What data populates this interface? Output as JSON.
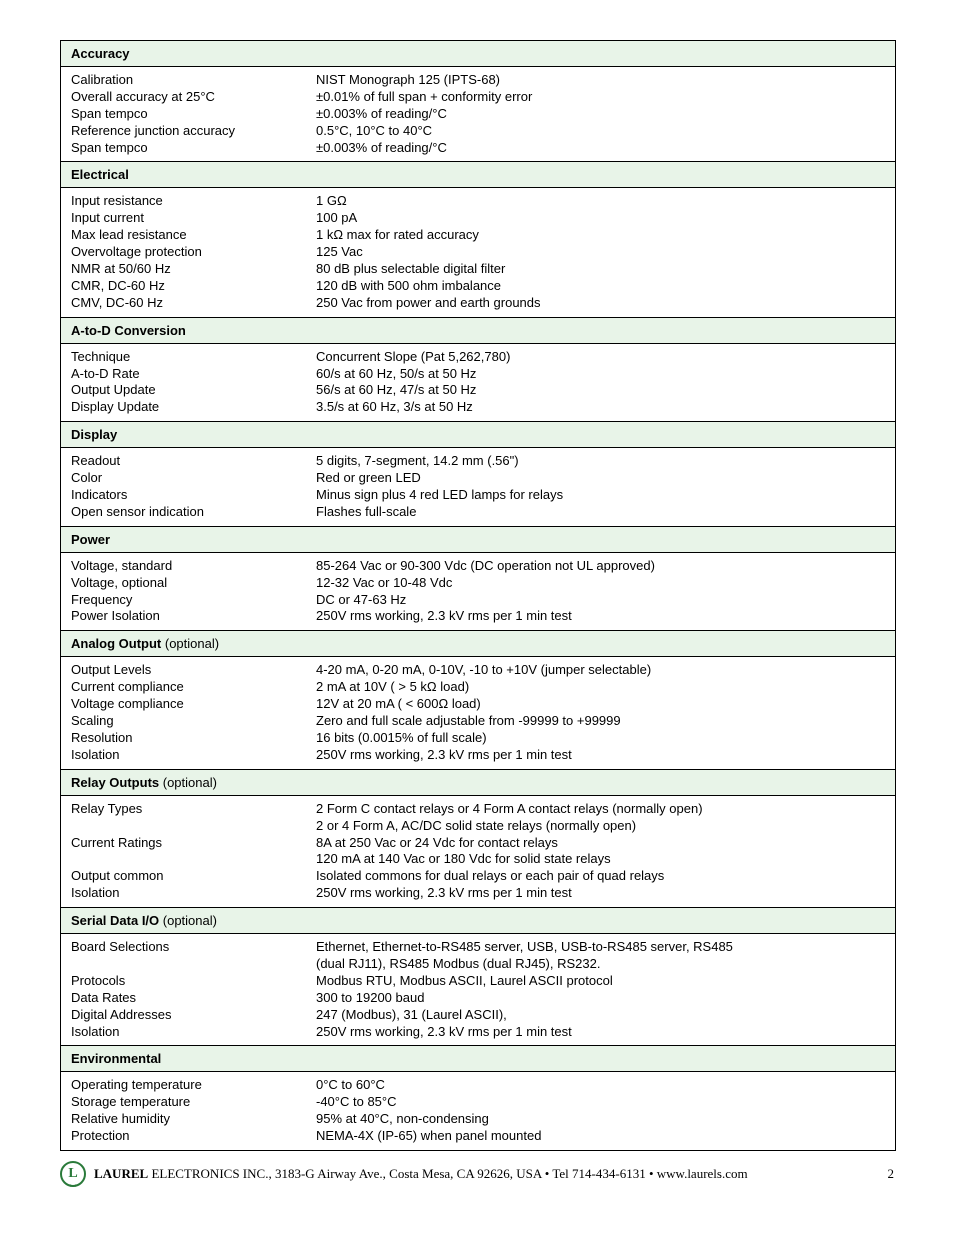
{
  "sections": [
    {
      "title": "Accuracy",
      "optional": "",
      "rows_left": [
        "Calibration",
        "Overall accuracy at 25°C",
        "Span tempco",
        "Reference junction accuracy",
        "Span tempco"
      ],
      "rows_right": [
        "NIST Monograph 125 (IPTS-68)",
        "±0.01% of full span + conformity error",
        "±0.003% of reading/°C",
        "0.5°C, 10°C to 40°C",
        "±0.003% of reading/°C"
      ]
    },
    {
      "title": "Electrical",
      "optional": "",
      "rows_left": [
        "Input resistance",
        "Input current",
        "Max lead resistance",
        "Overvoltage protection",
        "NMR at 50/60 Hz",
        "CMR, DC-60 Hz",
        "CMV, DC-60 Hz"
      ],
      "rows_right": [
        "1 GΩ",
        "100 pA",
        "1 kΩ max for rated accuracy",
        "125 Vac",
        "80 dB plus selectable digital filter",
        "120 dB with 500 ohm imbalance",
        "250 Vac from power and earth grounds"
      ]
    },
    {
      "title": "A-to-D Conversion",
      "optional": "",
      "rows_left": [
        "Technique",
        "A-to-D Rate",
        "Output Update",
        "Display Update"
      ],
      "rows_right": [
        "Concurrent Slope (Pat 5,262,780)",
        "60/s at 60 Hz, 50/s at 50 Hz",
        "56/s at 60 Hz, 47/s at 50 Hz",
        "3.5/s at 60 Hz, 3/s at 50 Hz"
      ]
    },
    {
      "title": "Display",
      "optional": "",
      "rows_left": [
        "Readout",
        "Color",
        "Indicators",
        "Open sensor indication"
      ],
      "rows_right": [
        "5 digits, 7-segment, 14.2 mm (.56\")",
        "Red or green LED",
        "Minus sign plus 4 red LED lamps for relays",
        "Flashes full-scale"
      ]
    },
    {
      "title": "Power",
      "optional": "",
      "rows_left": [
        "Voltage, standard",
        "Voltage, optional",
        "Frequency",
        "Power Isolation"
      ],
      "rows_right": [
        "85-264 Vac or 90-300 Vdc (DC operation not UL approved)",
        "12-32 Vac or 10-48 Vdc",
        "DC or 47-63 Hz",
        "250V rms working, 2.3 kV rms per 1 min test"
      ]
    },
    {
      "title": "Analog Output",
      "optional": " (optional)",
      "rows_left": [
        "Output Levels",
        "Current compliance",
        "Voltage compliance",
        "Scaling",
        "Resolution",
        "Isolation"
      ],
      "rows_right": [
        "4-20 mA, 0-20 mA, 0-10V, -10 to +10V (jumper selectable)",
        "2 mA at 10V ( > 5 kΩ load)",
        "12V at 20 mA ( < 600Ω load)",
        "Zero and full scale adjustable from -99999 to +99999",
        "16 bits (0.0015% of full scale)",
        "250V rms working, 2.3 kV rms per 1 min test"
      ]
    },
    {
      "title": "Relay Outputs",
      "optional": " (optional)",
      "rows_left": [
        "Relay Types",
        "",
        "Current Ratings",
        "",
        "Output common",
        "Isolation"
      ],
      "rows_right": [
        "2 Form C contact relays or 4 Form A contact relays (normally open)",
        "2 or 4 Form A, AC/DC solid state relays (normally open)",
        "8A at 250 Vac or 24 Vdc for contact relays",
        "120 mA at 140 Vac or 180 Vdc for solid state relays",
        "Isolated commons for dual relays or each pair of quad relays",
        "250V rms working, 2.3 kV rms per 1 min test"
      ]
    },
    {
      "title": "Serial Data I/O",
      "optional": " (optional)",
      "rows_left": [
        "Board Selections",
        "",
        "Protocols",
        "Data Rates",
        "Digital Addresses",
        "Isolation"
      ],
      "rows_right": [
        "Ethernet, Ethernet-to-RS485 server, USB, USB-to-RS485 server, RS485",
        "(dual RJ11), RS485 Modbus (dual RJ45), RS232.",
        "Modbus RTU, Modbus ASCII, Laurel ASCII protocol",
        "300 to 19200 baud",
        "247 (Modbus), 31 (Laurel ASCII),",
        "250V rms working, 2.3 kV rms per 1 min test"
      ]
    },
    {
      "title": "Environmental",
      "optional": "",
      "rows_left": [
        "Operating temperature",
        "Storage temperature",
        "Relative humidity",
        "Protection"
      ],
      "rows_right": [
        "0°C to 60°C",
        "-40°C to 85°C",
        "95% at 40°C, non-condensing",
        "NEMA-4X (IP-65) when panel mounted"
      ]
    }
  ],
  "footer": {
    "logo_letter": "L",
    "brand": "LAUREL",
    "address": " ELECTRONICS INC., 3183-G Airway Ave., Costa Mesa, CA 92626, USA • Tel 714-434-6131 • www.laurels.com",
    "page": "2"
  }
}
